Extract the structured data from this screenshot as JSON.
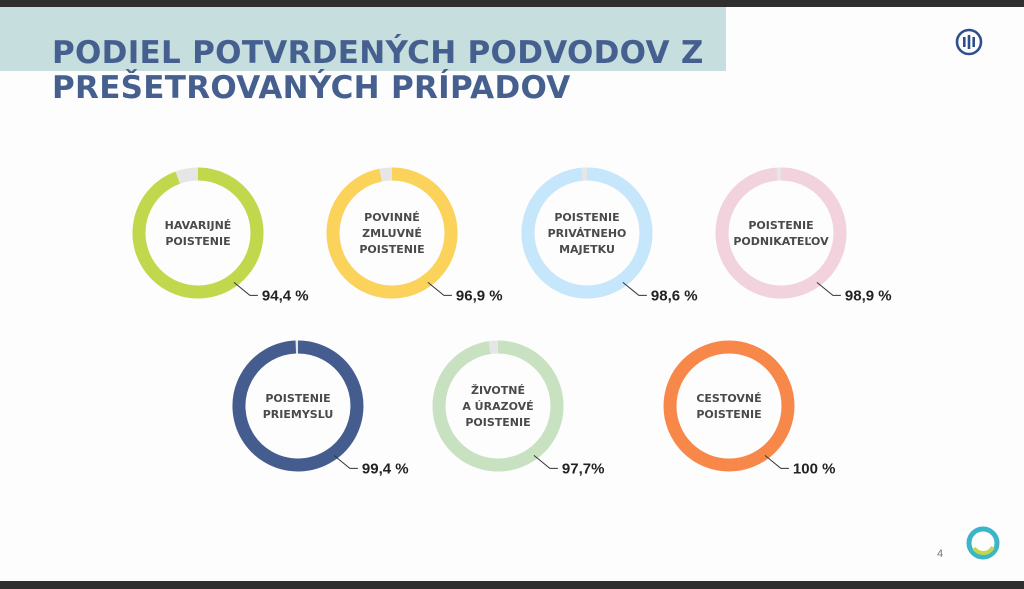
{
  "slide": {
    "title": "PODIEL POTVRDENÝCH PODVODOV Z PREŠETROVANÝCH PRÍPADOV",
    "page_number": "4"
  },
  "icons": {
    "brand_logo": "allianz-logo-icon",
    "corner_logo": "ring-logo-icon"
  },
  "chart_data": {
    "type": "donut",
    "title": "PODIEL POTVRDENÝCH PODVODOV Z PREŠETROVANÝCH PRÍPADOV",
    "remainder_color": "#e6e6e6",
    "items": [
      {
        "label": [
          "HAVARIJNÉ",
          "POISTENIE"
        ],
        "value": 94.4,
        "value_label": "94,4 %",
        "color": "#c2d84c"
      },
      {
        "label": [
          "POVINNÉ",
          "ZMLUVNÉ",
          "POISTENIE"
        ],
        "value": 96.9,
        "value_label": "96,9 %",
        "color": "#fbd25a"
      },
      {
        "label": [
          "POISTENIE",
          "PRIVÁTNEHO",
          "MAJETKU"
        ],
        "value": 98.6,
        "value_label": "98,6 %",
        "color": "#c5e6fb"
      },
      {
        "label": [
          "POISTENIE",
          "PODNIKATEĽOV"
        ],
        "value": 98.9,
        "value_label": "98,9 %",
        "color": "#f2d2dd"
      },
      {
        "label": [
          "POISTENIE",
          "PRIEMYSLU"
        ],
        "value": 99.4,
        "value_label": "99,4 %",
        "color": "#455d8e"
      },
      {
        "label": [
          "ŽIVOTNÉ",
          "A ÚRAZOVÉ",
          "POISTENIE"
        ],
        "value": 97.7,
        "value_label": "97,7%",
        "color": "#c8e2c1"
      },
      {
        "label": [
          "CESTOVNÉ",
          "POISTENIE"
        ],
        "value": 100,
        "value_label": "100 %",
        "color": "#f8884a"
      }
    ]
  }
}
